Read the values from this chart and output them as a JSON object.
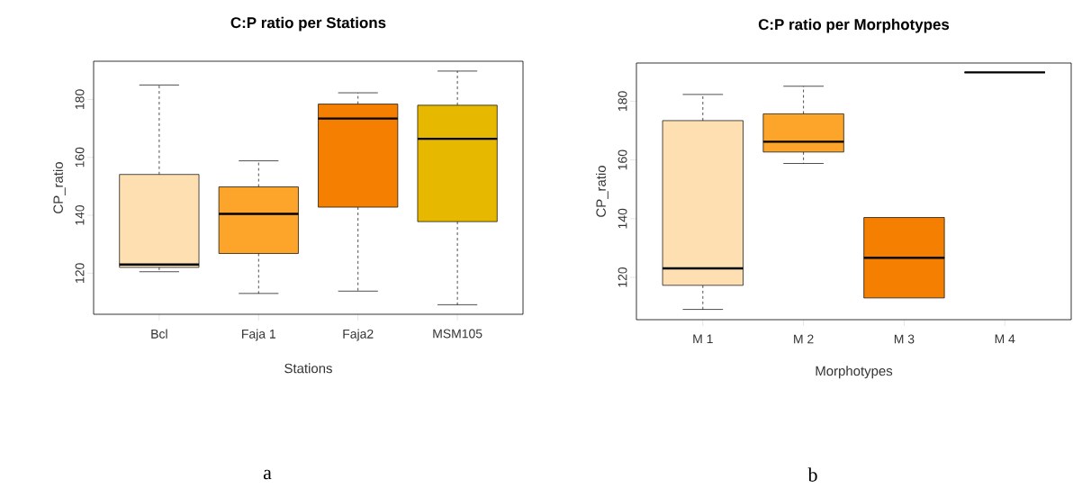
{
  "chart_data": [
    {
      "type": "box",
      "title": "C:P ratio per Stations",
      "xlabel": "Stations",
      "ylabel": "CP_ratio",
      "categories": [
        "Bcl",
        "Faja 1",
        "Faja2",
        "MSM105"
      ],
      "colors": [
        "#fddfb1",
        "#fca52a",
        "#f57f00",
        "#e6b800"
      ],
      "boxes": [
        {
          "low": 120.5,
          "q1": 122.0,
          "median": 123.0,
          "q3": 154.1,
          "high": 185.0
        },
        {
          "low": 113.0,
          "q1": 126.8,
          "median": 140.5,
          "q3": 149.8,
          "high": 158.8
        },
        {
          "low": 113.8,
          "q1": 142.8,
          "median": 173.4,
          "q3": 178.4,
          "high": 182.3
        },
        {
          "low": 109.1,
          "q1": 137.8,
          "median": 166.4,
          "q3": 178.0,
          "high": 189.8
        }
      ],
      "ylim": [
        105.8,
        193.2
      ],
      "yticks": [
        120,
        140,
        160,
        180
      ],
      "annotations": [
        "a"
      ]
    },
    {
      "type": "box",
      "title": "C:P ratio per Morphotypes",
      "xlabel": "Morphotypes",
      "ylabel": "CP_ratio",
      "categories": [
        "M 1",
        "M 2",
        "M 3",
        "M 4"
      ],
      "colors": [
        "#fddfb1",
        "#fca52a",
        "#f57f00",
        null
      ],
      "boxes": [
        {
          "low": 109.1,
          "q1": 117.3,
          "median": 123.1,
          "q3": 173.4,
          "high": 182.3
        },
        {
          "low": 158.8,
          "q1": 162.7,
          "median": 166.2,
          "q3": 175.7,
          "high": 185.1
        },
        {
          "low": 113.0,
          "q1": 113.0,
          "median": 126.7,
          "q3": 140.4,
          "high": 140.4
        },
        {
          "low": 189.8,
          "q1": 189.8,
          "median": 189.8,
          "q3": 189.8,
          "high": 189.8
        }
      ],
      "ylim": [
        105.6,
        193.0
      ],
      "yticks": [
        120,
        140,
        160,
        180
      ],
      "annotations": [
        "b"
      ]
    }
  ]
}
